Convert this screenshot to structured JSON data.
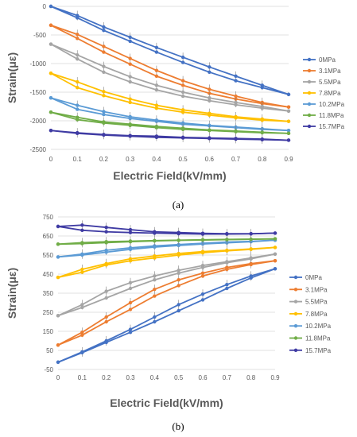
{
  "chart_data": [
    {
      "type": "line",
      "caption": "(a)",
      "xlabel": "Electric Field(kV/mm)",
      "ylabel": "Strain(με)",
      "x": [
        0,
        0.1,
        0.2,
        0.3,
        0.4,
        0.5,
        0.6,
        0.7,
        0.8,
        0.9
      ],
      "xlim": [
        0,
        0.9
      ],
      "ylim": [
        -2500,
        0
      ],
      "yticks": [
        0,
        -500,
        -1000,
        -1500,
        -2000,
        -2500
      ],
      "xticks": [
        "0",
        "0.1",
        "0.2",
        "0.3",
        "0.4",
        "0.5",
        "0.6",
        "0.7",
        "0.8",
        "0.9"
      ],
      "legend_position": "right",
      "grid": "horizontal",
      "series": [
        {
          "name": "0MPa",
          "color": "#4472c4",
          "up": [
            0,
            -160,
            -360,
            -540,
            -720,
            -890,
            -1060,
            -1220,
            -1380,
            -1540
          ],
          "down": [
            0,
            -200,
            -420,
            -610,
            -800,
            -980,
            -1150,
            -1300,
            -1420,
            -1540
          ]
        },
        {
          "name": "3.1MPa",
          "color": "#ed7d31",
          "up": [
            -330,
            -490,
            -700,
            -910,
            -1120,
            -1300,
            -1450,
            -1570,
            -1680,
            -1760
          ],
          "down": [
            -330,
            -560,
            -800,
            -1010,
            -1220,
            -1380,
            -1520,
            -1620,
            -1700,
            -1760
          ]
        },
        {
          "name": "5.5MPa",
          "color": "#a5a5a5",
          "up": [
            -660,
            -850,
            -1050,
            -1230,
            -1380,
            -1500,
            -1600,
            -1680,
            -1750,
            -1830
          ],
          "down": [
            -660,
            -920,
            -1150,
            -1320,
            -1460,
            -1570,
            -1650,
            -1720,
            -1780,
            -1830
          ]
        },
        {
          "name": "7.8MPa",
          "color": "#ffc000",
          "up": [
            -1170,
            -1320,
            -1490,
            -1620,
            -1730,
            -1810,
            -1870,
            -1930,
            -1970,
            -2010
          ],
          "down": [
            -1170,
            -1420,
            -1560,
            -1680,
            -1780,
            -1850,
            -1900,
            -1950,
            -1990,
            -2010
          ]
        },
        {
          "name": "10.2MPa",
          "color": "#5b9bd5",
          "up": [
            -1600,
            -1730,
            -1840,
            -1930,
            -1990,
            -2040,
            -2080,
            -2110,
            -2140,
            -2170
          ],
          "down": [
            -1600,
            -1800,
            -1890,
            -1960,
            -2010,
            -2060,
            -2090,
            -2120,
            -2150,
            -2170
          ]
        },
        {
          "name": "11.8MPa",
          "color": "#70ad47",
          "up": [
            -1850,
            -1940,
            -2020,
            -2060,
            -2100,
            -2130,
            -2160,
            -2180,
            -2200,
            -2220
          ],
          "down": [
            -1850,
            -1980,
            -2040,
            -2080,
            -2120,
            -2150,
            -2170,
            -2190,
            -2210,
            -2220
          ]
        },
        {
          "name": "15.7MPa",
          "color": "#3f3ba3",
          "up": [
            -2170,
            -2210,
            -2240,
            -2260,
            -2270,
            -2290,
            -2300,
            -2310,
            -2320,
            -2340
          ],
          "down": [
            -2170,
            -2220,
            -2250,
            -2270,
            -2290,
            -2300,
            -2310,
            -2320,
            -2330,
            -2340
          ]
        }
      ]
    },
    {
      "type": "line",
      "caption": "(b)",
      "xlabel": "Electric Field(kV/mm)",
      "ylabel": "Strain(με)",
      "x": [
        0,
        0.1,
        0.2,
        0.3,
        0.4,
        0.5,
        0.6,
        0.7,
        0.8,
        0.9
      ],
      "xlim": [
        0,
        0.9
      ],
      "ylim": [
        -50,
        750
      ],
      "yticks": [
        750,
        650,
        550,
        450,
        350,
        250,
        150,
        50,
        -50
      ],
      "xticks": [
        "0",
        "0.1",
        "0.2",
        "0.3",
        "0.4",
        "0.5",
        "0.6",
        "0.7",
        "0.8",
        "0.9"
      ],
      "legend_position": "right",
      "grid": "horizontal",
      "series": [
        {
          "name": "0MPa",
          "color": "#4472c4",
          "up": [
            -12,
            42,
            100,
            160,
            225,
            290,
            345,
            395,
            440,
            478
          ],
          "down": [
            -12,
            38,
            92,
            145,
            200,
            258,
            315,
            375,
            430,
            478
          ]
        },
        {
          "name": "3.1MPa",
          "color": "#ed7d31",
          "up": [
            78,
            145,
            225,
            300,
            370,
            420,
            455,
            485,
            505,
            520
          ],
          "down": [
            78,
            130,
            200,
            265,
            335,
            390,
            440,
            475,
            500,
            520
          ]
        },
        {
          "name": "5.5MPa",
          "color": "#a5a5a5",
          "up": [
            232,
            290,
            360,
            405,
            440,
            470,
            495,
            515,
            535,
            555
          ],
          "down": [
            232,
            275,
            325,
            375,
            420,
            455,
            485,
            510,
            530,
            555
          ]
        },
        {
          "name": "7.8MPa",
          "color": "#ffc000",
          "up": [
            433,
            475,
            505,
            530,
            545,
            558,
            568,
            575,
            582,
            590
          ],
          "down": [
            433,
            460,
            498,
            520,
            535,
            550,
            562,
            572,
            580,
            590
          ]
        },
        {
          "name": "10.2MPa",
          "color": "#5b9bd5",
          "up": [
            540,
            555,
            575,
            588,
            598,
            605,
            612,
            618,
            622,
            628
          ],
          "down": [
            540,
            550,
            565,
            580,
            592,
            600,
            608,
            614,
            620,
            628
          ]
        },
        {
          "name": "11.8MPa",
          "color": "#70ad47",
          "up": [
            607,
            615,
            620,
            623,
            626,
            628,
            630,
            632,
            633,
            635
          ],
          "down": [
            607,
            610,
            615,
            620,
            624,
            627,
            629,
            631,
            633,
            635
          ]
        },
        {
          "name": "15.7MPa",
          "color": "#3f3ba3",
          "up": [
            700,
            707,
            695,
            683,
            672,
            668,
            664,
            662,
            662,
            665
          ],
          "down": [
            700,
            680,
            672,
            668,
            665,
            662,
            660,
            660,
            661,
            665
          ]
        }
      ]
    }
  ]
}
